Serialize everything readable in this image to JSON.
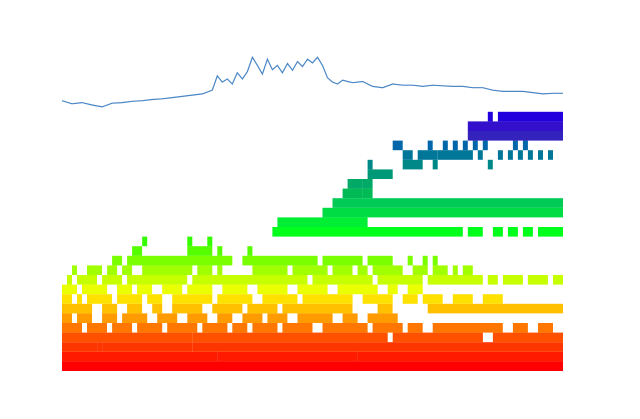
{
  "chart_data": {
    "type": "area",
    "title": "",
    "xlabel": "",
    "ylabel": "",
    "axes_visible": false,
    "grid": false,
    "legend": "none",
    "xlim": [
      0,
      100
    ],
    "line_panel": {
      "ylim": [
        0,
        100
      ],
      "color": "#4a86c5",
      "x": [
        0,
        2,
        4,
        6,
        8,
        10,
        12,
        14,
        16,
        18,
        20,
        22,
        24,
        26,
        28,
        30,
        31,
        32,
        33,
        34,
        35,
        36,
        37,
        38,
        39,
        40,
        41,
        42,
        43,
        44,
        45,
        46,
        47,
        48,
        49,
        50,
        51,
        52,
        53,
        54,
        55,
        56,
        57,
        58,
        60,
        62,
        64,
        66,
        68,
        70,
        72,
        74,
        76,
        78,
        80,
        82,
        84,
        86,
        88,
        90,
        92,
        94,
        96,
        98,
        100
      ],
      "y": [
        15,
        10,
        12,
        8,
        5,
        11,
        12,
        14,
        15,
        17,
        18,
        20,
        22,
        24,
        26,
        32,
        55,
        45,
        50,
        42,
        60,
        50,
        62,
        85,
        72,
        58,
        82,
        65,
        72,
        60,
        75,
        64,
        78,
        70,
        82,
        76,
        85,
        72,
        52,
        45,
        42,
        48,
        46,
        44,
        46,
        38,
        36,
        42,
        40,
        40,
        38,
        40,
        39,
        38,
        38,
        36,
        36,
        32,
        30,
        30,
        30,
        28,
        26,
        27,
        27
      ]
    },
    "levels": [
      {
        "color": "#ff0000",
        "segments": [
          [
            0,
            100
          ]
        ]
      },
      {
        "color": "#ff1a00",
        "segments": [
          [
            0,
            31
          ],
          [
            31,
            52
          ],
          [
            52,
            59
          ],
          [
            59,
            100
          ]
        ]
      },
      {
        "color": "#ff3500",
        "segments": [
          [
            0,
            7
          ],
          [
            7,
            8
          ],
          [
            8,
            26
          ],
          [
            26,
            100
          ]
        ]
      },
      {
        "color": "#ff5000",
        "segments": [
          [
            0,
            26
          ],
          [
            26,
            45
          ],
          [
            45,
            47
          ],
          [
            47,
            65
          ],
          [
            66,
            84
          ],
          [
            86,
            100
          ]
        ]
      },
      {
        "color": "#ff7700",
        "segments": [
          [
            0,
            4
          ],
          [
            5,
            9
          ],
          [
            10,
            14
          ],
          [
            15,
            20
          ],
          [
            21,
            27
          ],
          [
            28,
            33
          ],
          [
            34,
            37
          ],
          [
            38,
            43
          ],
          [
            44,
            50
          ],
          [
            52,
            61
          ],
          [
            62,
            68
          ],
          [
            69,
            72
          ],
          [
            74,
            88
          ],
          [
            90,
            93
          ],
          [
            95,
            98
          ]
        ]
      },
      {
        "color": "#ff9a00",
        "segments": [
          [
            0,
            2
          ],
          [
            3,
            6
          ],
          [
            8,
            11
          ],
          [
            12,
            17
          ],
          [
            19,
            23
          ],
          [
            25,
            29
          ],
          [
            31,
            34
          ],
          [
            36,
            40
          ],
          [
            41,
            45
          ],
          [
            47,
            54
          ],
          [
            56,
            59
          ],
          [
            61,
            67
          ]
        ]
      },
      {
        "color": "#ffc000",
        "segments": [
          [
            0,
            6
          ],
          [
            8,
            11
          ],
          [
            13,
            16
          ],
          [
            18,
            20
          ],
          [
            22,
            28
          ],
          [
            30,
            36
          ],
          [
            37,
            43
          ],
          [
            44,
            58
          ],
          [
            63,
            66
          ],
          [
            73,
            100
          ]
        ]
      },
      {
        "color": "#ffe100",
        "segments": [
          [
            0,
            2
          ],
          [
            3,
            4
          ],
          [
            5,
            10
          ],
          [
            11,
            16
          ],
          [
            17,
            20
          ],
          [
            22,
            30
          ],
          [
            31,
            38
          ],
          [
            40,
            47
          ],
          [
            48,
            58
          ],
          [
            60,
            66
          ],
          [
            68,
            71
          ],
          [
            72,
            76
          ],
          [
            78,
            82
          ],
          [
            84,
            88
          ]
        ]
      },
      {
        "color": "#eaff00",
        "segments": [
          [
            0,
            3
          ],
          [
            4,
            9
          ],
          [
            11,
            14
          ],
          [
            15,
            18
          ],
          [
            20,
            24
          ],
          [
            25,
            30
          ],
          [
            32,
            37
          ],
          [
            39,
            45
          ],
          [
            47,
            53
          ],
          [
            55,
            63
          ],
          [
            65,
            67
          ],
          [
            69,
            72
          ]
        ]
      },
      {
        "color": "#c5ff00",
        "segments": [
          [
            1,
            2
          ],
          [
            3,
            7
          ],
          [
            8,
            12
          ],
          [
            13,
            25
          ],
          [
            26,
            49
          ],
          [
            50,
            62
          ],
          [
            63,
            72
          ],
          [
            73,
            84
          ],
          [
            85,
            87
          ],
          [
            88,
            92
          ],
          [
            93,
            97
          ],
          [
            98,
            100
          ]
        ]
      },
      {
        "color": "#a0ff00",
        "segments": [
          [
            2,
            3
          ],
          [
            5,
            8
          ],
          [
            9,
            11
          ],
          [
            12,
            14
          ],
          [
            16,
            26
          ],
          [
            27,
            30
          ],
          [
            31,
            32
          ],
          [
            38,
            45
          ],
          [
            46,
            53
          ],
          [
            54,
            58
          ],
          [
            59,
            61
          ],
          [
            62,
            68
          ],
          [
            70,
            73
          ],
          [
            74,
            77
          ],
          [
            78,
            79
          ],
          [
            80,
            82
          ]
        ]
      },
      {
        "color": "#7aff00",
        "segments": [
          [
            10,
            12
          ],
          [
            13,
            34
          ],
          [
            36,
            51
          ],
          [
            52,
            60
          ],
          [
            61,
            66
          ],
          [
            69,
            70
          ],
          [
            72,
            73
          ],
          [
            74,
            75
          ]
        ]
      },
      {
        "color": "#55ff00",
        "segments": [
          [
            14,
            16
          ],
          [
            25,
            30
          ],
          [
            31,
            32
          ],
          [
            37,
            38
          ]
        ]
      },
      {
        "color": "#33ff00",
        "segments": [
          [
            16,
            17
          ],
          [
            25,
            26
          ],
          [
            29,
            30
          ]
        ]
      },
      {
        "color": "#00ff1a",
        "segments": [
          [
            42,
            80
          ],
          [
            81,
            84
          ],
          [
            86,
            88
          ],
          [
            89,
            91
          ],
          [
            92,
            94
          ],
          [
            95,
            100
          ]
        ]
      },
      {
        "color": "#00ee33",
        "segments": [
          [
            43,
            49
          ],
          [
            49,
            52
          ],
          [
            52,
            61
          ]
        ]
      },
      {
        "color": "#00dd44",
        "segments": [
          [
            52,
            100
          ]
        ]
      },
      {
        "color": "#00cc55",
        "segments": [
          [
            54,
            100
          ]
        ]
      },
      {
        "color": "#00bb55",
        "segments": [
          [
            56,
            60
          ],
          [
            60,
            62
          ]
        ]
      },
      {
        "color": "#00aa66",
        "segments": [
          [
            57,
            60
          ],
          [
            60,
            62
          ]
        ]
      },
      {
        "color": "#009977",
        "segments": [
          [
            61,
            66
          ]
        ]
      },
      {
        "color": "#008888",
        "segments": [
          [
            61,
            62
          ],
          [
            68,
            72
          ],
          [
            74,
            75
          ],
          [
            85,
            86
          ]
        ]
      },
      {
        "color": "#007799",
        "segments": [
          [
            68,
            70
          ],
          [
            71,
            75
          ],
          [
            75,
            82
          ],
          [
            83,
            84
          ],
          [
            87,
            88
          ],
          [
            89,
            90
          ],
          [
            91,
            92
          ],
          [
            93,
            94
          ],
          [
            95,
            96
          ],
          [
            97,
            98
          ]
        ]
      },
      {
        "color": "#0066aa",
        "segments": [
          [
            66,
            68
          ],
          [
            73,
            74
          ],
          [
            76,
            77
          ],
          [
            78,
            79
          ],
          [
            80,
            81
          ],
          [
            82,
            83
          ],
          [
            84,
            85
          ],
          [
            90,
            91
          ],
          [
            92,
            93
          ]
        ]
      },
      {
        "color": "#3322bb",
        "segments": [
          [
            81,
            100
          ]
        ]
      },
      {
        "color": "#3311cc",
        "segments": [
          [
            81,
            100
          ]
        ]
      },
      {
        "color": "#2200dd",
        "segments": [
          [
            85,
            86
          ],
          [
            87,
            100
          ]
        ]
      }
    ]
  }
}
